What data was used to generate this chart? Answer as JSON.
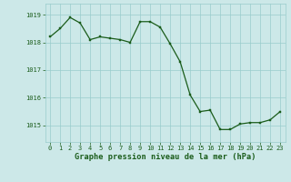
{
  "hours": [
    0,
    1,
    2,
    3,
    4,
    5,
    6,
    7,
    8,
    9,
    10,
    11,
    12,
    13,
    14,
    15,
    16,
    17,
    18,
    19,
    20,
    21,
    22,
    23
  ],
  "pressure": [
    1018.2,
    1018.5,
    1018.9,
    1018.7,
    1018.1,
    1018.2,
    1018.15,
    1018.1,
    1018.0,
    1018.75,
    1018.75,
    1018.55,
    1017.95,
    1017.3,
    1016.1,
    1015.5,
    1015.55,
    1014.85,
    1014.85,
    1015.05,
    1015.1,
    1015.1,
    1015.2,
    1015.5
  ],
  "line_color": "#1a5c1a",
  "marker_color": "#1a5c1a",
  "bg_color": "#cce8e8",
  "grid_color": "#99cccc",
  "label_color": "#1a5c1a",
  "xlabel": "Graphe pression niveau de la mer (hPa)",
  "ylim_min": 1014.4,
  "ylim_max": 1019.4,
  "yticks": [
    1015,
    1016,
    1017,
    1018,
    1019
  ],
  "xticks": [
    0,
    1,
    2,
    3,
    4,
    5,
    6,
    7,
    8,
    9,
    10,
    11,
    12,
    13,
    14,
    15,
    16,
    17,
    18,
    19,
    20,
    21,
    22,
    23
  ]
}
